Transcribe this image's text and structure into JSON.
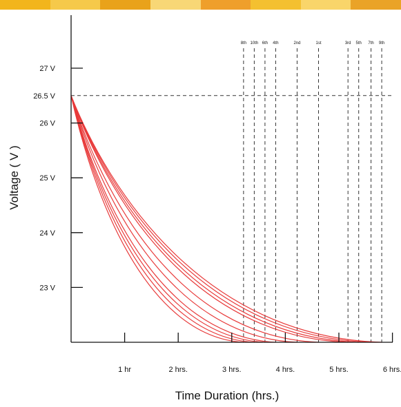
{
  "banner": {
    "colors": [
      "#f2b51c",
      "#f6c94a",
      "#e9a21a",
      "#f8d776",
      "#ef9f2b",
      "#f4c030",
      "#f9d56a",
      "#eaa327"
    ]
  },
  "chart_data": {
    "type": "line",
    "title": "",
    "xlabel": "Time Duration (hrs.)",
    "ylabel": "Voltage ( V )",
    "xlim": [
      0,
      6
    ],
    "ylim": [
      22,
      28
    ],
    "x_ticks": [
      {
        "value": 1,
        "label": "1 hr"
      },
      {
        "value": 2,
        "label": "2 hrs."
      },
      {
        "value": 3,
        "label": "3 hrs."
      },
      {
        "value": 4,
        "label": "4 hrs."
      },
      {
        "value": 5,
        "label": "5 hrs."
      },
      {
        "value": 6,
        "label": "6 hrs."
      }
    ],
    "y_ticks": [
      {
        "value": 23,
        "label": "23 V"
      },
      {
        "value": 24,
        "label": "24 V"
      },
      {
        "value": 25,
        "label": "25 V"
      },
      {
        "value": 26,
        "label": "26 V"
      },
      {
        "value": 26.5,
        "label": "26.5 V"
      },
      {
        "value": 27,
        "label": "27 V"
      }
    ],
    "reference_line": {
      "y": 26.5
    },
    "start_voltage": 26.5,
    "end_voltage": 22,
    "curve_color": "#e83a3a",
    "grid": false,
    "legend": "none",
    "series": [
      {
        "name": "8th",
        "end_time": 3.22
      },
      {
        "name": "10th",
        "end_time": 3.42
      },
      {
        "name": "6th",
        "end_time": 3.62
      },
      {
        "name": "4th",
        "end_time": 3.82
      },
      {
        "name": "2nd",
        "end_time": 4.22
      },
      {
        "name": "1st",
        "end_time": 4.62
      },
      {
        "name": "3rd",
        "end_time": 5.17
      },
      {
        "name": "5th",
        "end_time": 5.37
      },
      {
        "name": "7th",
        "end_time": 5.6
      },
      {
        "name": "9th",
        "end_time": 5.8
      }
    ]
  }
}
